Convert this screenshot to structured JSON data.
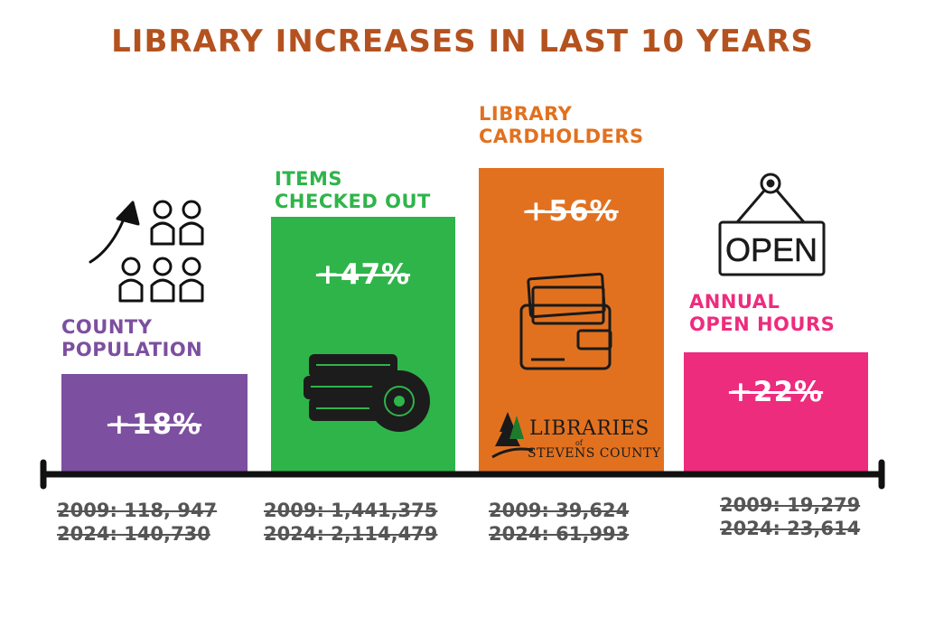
{
  "chart_data": {
    "type": "bar",
    "title": "LIBRARY INCREASES IN LAST 10 YEARS",
    "categories": [
      "COUNTY POPULATION",
      "ITEMS CHECKED OUT",
      "LIBRARY CARDHOLDERS",
      "ANNUAL OPEN HOURS"
    ],
    "values": [
      18,
      47,
      56,
      22
    ],
    "value_labels": [
      "+18%",
      "+47%",
      "+56%",
      "+22%"
    ],
    "colors": [
      "#7d4fa0",
      "#2fb44a",
      "#e2711f",
      "#ed2c7d"
    ],
    "stats": [
      {
        "y2009": "2009: 118, 947",
        "y2024": "2024: 140,730"
      },
      {
        "y2009": "2009: 1,441,375",
        "y2024": "2024: 2,114,479"
      },
      {
        "y2009": "2009: 39,624",
        "y2024": "2024: 61,993"
      },
      {
        "y2009": "2009: 19,279",
        "y2024": "2024: 23,614"
      }
    ],
    "icons": [
      "population-growth-icon",
      "books-and-disc-icon",
      "wallet-cards-icon",
      "open-sign-icon"
    ],
    "xlabel": "",
    "ylabel": "",
    "ylim": [
      0,
      60
    ],
    "grid": false
  },
  "labels": {
    "cat1": "COUNTY\nPOPULATION",
    "cat2": "ITEMS\nCHECKED OUT",
    "cat3": "LIBRARY\nCARDHOLDERS",
    "cat4": "ANNUAL\nOPEN HOURS"
  },
  "open_sign_text": "OPEN",
  "logo": {
    "line1": "LIBRARIES",
    "line2": "of",
    "line3": "STEVENS COUNTY"
  }
}
